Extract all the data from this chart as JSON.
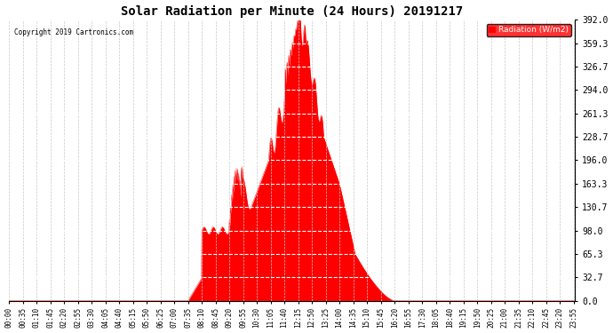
{
  "title": "Solar Radiation per Minute (24 Hours) 20191217",
  "copyright_text": "Copyright 2019 Cartronics.com",
  "legend_label": "Radiation (W/m2)",
  "fill_color": "#FF0000",
  "line_color": "#FF0000",
  "background_color": "#FFFFFF",
  "grid_color": "#C8C8C8",
  "yticks": [
    0.0,
    32.7,
    65.3,
    98.0,
    130.7,
    163.3,
    196.0,
    228.7,
    261.3,
    294.0,
    326.7,
    359.3,
    392.0
  ],
  "ymax": 392.0,
  "total_minutes": 1440,
  "xtick_interval": 35
}
